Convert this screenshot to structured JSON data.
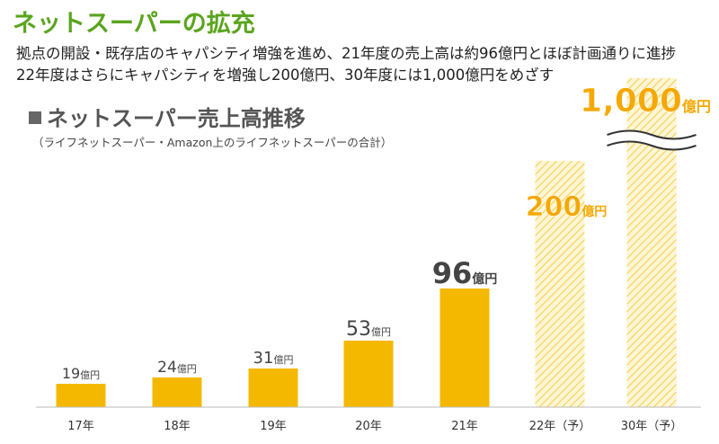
{
  "header": {
    "title": "ネットスーパーの拡充",
    "description_line1": "拠点の開設・既存店のキャパシティ増強を進め、21年度の売上高は約96億円とほぼ計画通りに進捗",
    "description_line2": "22年度はさらにキャパシティを増強し200億円、30年度には1,000億円をめざす"
  },
  "chart_data": {
    "type": "bar",
    "title": "ネットスーパー売上高推移",
    "subtitle": "（ライフネットスーパー・Amazon上のライフネットスーパーの合計）",
    "categories": [
      "17年",
      "18年",
      "19年",
      "20年",
      "21年",
      "22年（予）",
      "30年（予）"
    ],
    "values": [
      19,
      24,
      31,
      53,
      96,
      200,
      1000
    ],
    "unit": "億円",
    "value_labels": [
      "19",
      "24",
      "31",
      "53",
      "96",
      "200",
      "1,000"
    ],
    "forecast": [
      false,
      false,
      false,
      false,
      false,
      true,
      true
    ],
    "axis_break": true,
    "colors": {
      "actual": "#f5b800",
      "forecast": "#f5b800",
      "forecast_label": "#f5a800",
      "actual_label": "#444444"
    }
  }
}
